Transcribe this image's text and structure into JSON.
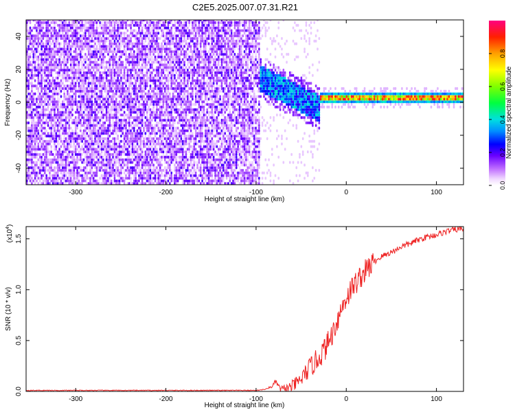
{
  "title": "C2E5.2025.007.07.31.R21",
  "chart_data": [
    {
      "type": "heatmap",
      "xlabel": "Height of straight line (km)",
      "ylabel": "Frequency (Hz)",
      "xlim": [
        -355,
        130
      ],
      "ylim": [
        -50,
        50
      ],
      "xticks": [
        -300,
        -200,
        -100,
        0,
        100
      ],
      "yticks": [
        -40,
        -20,
        0,
        20,
        40
      ],
      "colorbar": {
        "label": "Normalized spectral amplitude",
        "range": [
          0,
          1
        ],
        "ticks": [
          0.0,
          0.2,
          0.4,
          0.6,
          0.8
        ]
      },
      "features": {
        "noise_region_x": [
          -355,
          -97
        ],
        "transition_x": [
          -97,
          -30
        ],
        "tone_region_x": [
          -30,
          130
        ],
        "tone_frequency_hz": 2
      }
    },
    {
      "type": "line",
      "xlabel": "Height of straight line (km)",
      "ylabel": "SNR (10 * v/v)",
      "yscale_label": "(x10",
      "yscale_exp": "4",
      "yscale_close": ")",
      "xlim": [
        -355,
        130
      ],
      "ylim": [
        0,
        1.62
      ],
      "xticks": [
        -300,
        -200,
        -100,
        0,
        100
      ],
      "yticks": [
        0.0,
        0.5,
        1.0,
        1.5
      ],
      "series": [
        {
          "color": "#ee2222",
          "x": [
            -355,
            -300,
            -250,
            -200,
            -150,
            -100,
            -90,
            -82,
            -78,
            -74,
            -70,
            -65,
            -60,
            -55,
            -50,
            -45,
            -40,
            -35,
            -30,
            -25,
            -20,
            -15,
            -10,
            -5,
            0,
            5,
            10,
            15,
            20,
            25,
            30,
            35,
            40,
            45,
            50,
            55,
            60,
            70,
            80,
            90,
            100,
            110,
            120,
            130
          ],
          "y": [
            0.01,
            0.01,
            0.01,
            0.01,
            0.01,
            0.01,
            0.02,
            0.05,
            0.1,
            0.03,
            0.02,
            0.03,
            0.05,
            0.08,
            0.12,
            0.18,
            0.24,
            0.28,
            0.34,
            0.4,
            0.48,
            0.58,
            0.7,
            0.82,
            0.92,
            1.0,
            1.06,
            1.12,
            1.17,
            1.22,
            1.27,
            1.3,
            1.33,
            1.35,
            1.37,
            1.39,
            1.42,
            1.45,
            1.49,
            1.52,
            1.54,
            1.57,
            1.59,
            1.6
          ]
        }
      ]
    }
  ]
}
